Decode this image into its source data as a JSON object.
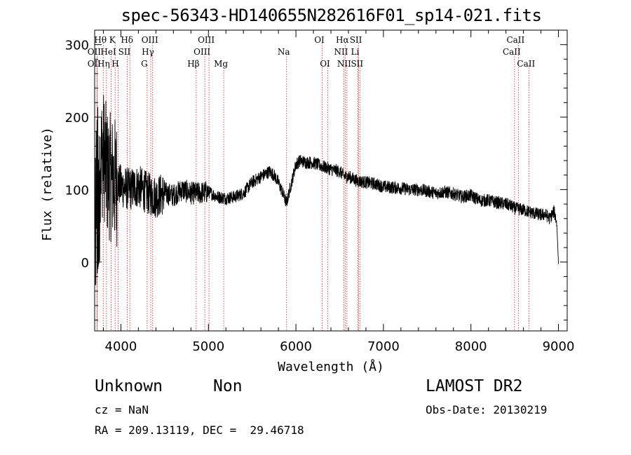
{
  "title": "spec-56343-HD140655N282616F01_sp14-021.fits",
  "chart_data": {
    "type": "line",
    "title": "spec-56343-HD140655N282616F01_sp14-021.fits",
    "xlabel": "Wavelength (Å)",
    "ylabel": "Flux (relative)",
    "xlim": [
      3700,
      9100
    ],
    "ylim": [
      -95,
      320
    ],
    "xticks": [
      4000,
      5000,
      6000,
      7000,
      8000,
      9000
    ],
    "yticks": [
      0,
      100,
      200,
      300
    ],
    "grid": false,
    "spectrum_anchors": {
      "x": [
        3700,
        3750,
        3800,
        3850,
        3900,
        3950,
        4000,
        4100,
        4200,
        4300,
        4400,
        4500,
        4600,
        4700,
        4800,
        4900,
        5000,
        5100,
        5200,
        5300,
        5400,
        5500,
        5600,
        5700,
        5750,
        5800,
        5850,
        5890,
        5900,
        5950,
        6000,
        6050,
        6100,
        6200,
        6300,
        6400,
        6500,
        6560,
        6600,
        6700,
        6800,
        6900,
        7000,
        7100,
        7200,
        7300,
        7400,
        7500,
        7600,
        7700,
        7800,
        7900,
        8000,
        8100,
        8200,
        8300,
        8400,
        8450,
        8500,
        8600,
        8700,
        8800,
        8850,
        8900,
        8950,
        8980,
        9000
      ],
      "y": [
        100,
        140,
        150,
        120,
        115,
        110,
        105,
        100,
        105,
        95,
        90,
        95,
        92,
        100,
        95,
        95,
        97,
        90,
        88,
        90,
        95,
        110,
        118,
        125,
        120,
        110,
        95,
        82,
        85,
        110,
        135,
        140,
        138,
        137,
        132,
        128,
        125,
        118,
        118,
        112,
        110,
        108,
        104,
        103,
        102,
        100,
        100,
        98,
        95,
        97,
        94,
        90,
        92,
        85,
        85,
        82,
        80,
        78,
        74,
        72,
        68,
        65,
        66,
        60,
        70,
        55,
        0
      ]
    },
    "lines": [
      {
        "label": "Hθ",
        "wavelength": 3798,
        "row": 0
      },
      {
        "label": "K",
        "wavelength": 3934,
        "row": 0
      },
      {
        "label": "Hδ",
        "wavelength": 4102,
        "row": 0
      },
      {
        "label": "OIII",
        "wavelength": 4363,
        "row": 0
      },
      {
        "label": "OIII",
        "wavelength": 5007,
        "row": 0
      },
      {
        "label": "OI",
        "wavelength": 6300,
        "row": 0
      },
      {
        "label": "Hα",
        "wavelength": 6563,
        "row": 0
      },
      {
        "label": "SII",
        "wavelength": 6717,
        "row": 0
      },
      {
        "label": "CaII",
        "wavelength": 8542,
        "row": 0
      },
      {
        "label": "OII",
        "wavelength": 3727,
        "row": 1
      },
      {
        "label": "HeI",
        "wavelength": 3889,
        "row": 1
      },
      {
        "label": "SII",
        "wavelength": 4072,
        "row": 1
      },
      {
        "label": "Hγ",
        "wavelength": 4341,
        "row": 1
      },
      {
        "label": "OIII",
        "wavelength": 4959,
        "row": 1
      },
      {
        "label": "Na",
        "wavelength": 5893,
        "row": 1
      },
      {
        "label": "NII",
        "wavelength": 6548,
        "row": 1
      },
      {
        "label": "Li",
        "wavelength": 6708,
        "row": 1
      },
      {
        "label": "CaII",
        "wavelength": 8498,
        "row": 1
      },
      {
        "label": "OII",
        "wavelength": 3727,
        "row": 2
      },
      {
        "label": "Hη",
        "wavelength": 3835,
        "row": 2
      },
      {
        "label": "H",
        "wavelength": 3968,
        "row": 2
      },
      {
        "label": "G",
        "wavelength": 4300,
        "row": 2
      },
      {
        "label": "Hβ",
        "wavelength": 4861,
        "row": 2
      },
      {
        "label": "Mg",
        "wavelength": 5175,
        "row": 2
      },
      {
        "label": "OI",
        "wavelength": 6364,
        "row": 2
      },
      {
        "label": "NII",
        "wavelength": 6583,
        "row": 2
      },
      {
        "label": "SII",
        "wavelength": 6731,
        "row": 2
      },
      {
        "label": "CaII",
        "wavelength": 8662,
        "row": 2
      }
    ]
  },
  "info": {
    "class": "Unknown",
    "subclass": "Non",
    "cz": "cz = NaN",
    "coords": "RA = 209.13119, DEC =  29.46718",
    "survey": "LAMOST DR2",
    "obsdate": "Obs-Date: 20130219"
  }
}
